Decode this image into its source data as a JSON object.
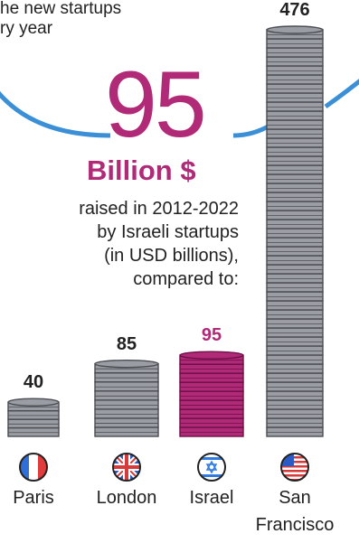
{
  "header": {
    "line1": "he new startups",
    "line2": "ry year"
  },
  "headline": {
    "number": "95",
    "unit": "Billion $"
  },
  "description": {
    "line1": "raised in 2012-2022",
    "line2": "by Israeli startups",
    "line3": "(in USD billions),",
    "line4": "compared to:"
  },
  "chart_data": {
    "type": "bar",
    "style": "coin-stacks",
    "categories": [
      "Paris",
      "London",
      "Israel",
      "San Francisco"
    ],
    "values": [
      40,
      85,
      95,
      476
    ],
    "value_labels": [
      "40",
      "85",
      "95",
      "476"
    ],
    "category_label_lines": [
      [
        "Paris"
      ],
      [
        "London"
      ],
      [
        "Israel"
      ],
      [
        "San",
        "Francisco"
      ]
    ],
    "flags": [
      "france-flag",
      "uk-flag",
      "israel-flag",
      "usa-flag"
    ],
    "colors": {
      "default_coin": "#9a9da3",
      "default_coin_edge": "#4a4d52",
      "highlight_coin": "#b02a78",
      "highlight_coin_edge": "#6e1048",
      "highlight_label": "#b02a78",
      "default_label": "#222222",
      "arc": "#3a8fd6"
    },
    "highlight_index": 2
  }
}
